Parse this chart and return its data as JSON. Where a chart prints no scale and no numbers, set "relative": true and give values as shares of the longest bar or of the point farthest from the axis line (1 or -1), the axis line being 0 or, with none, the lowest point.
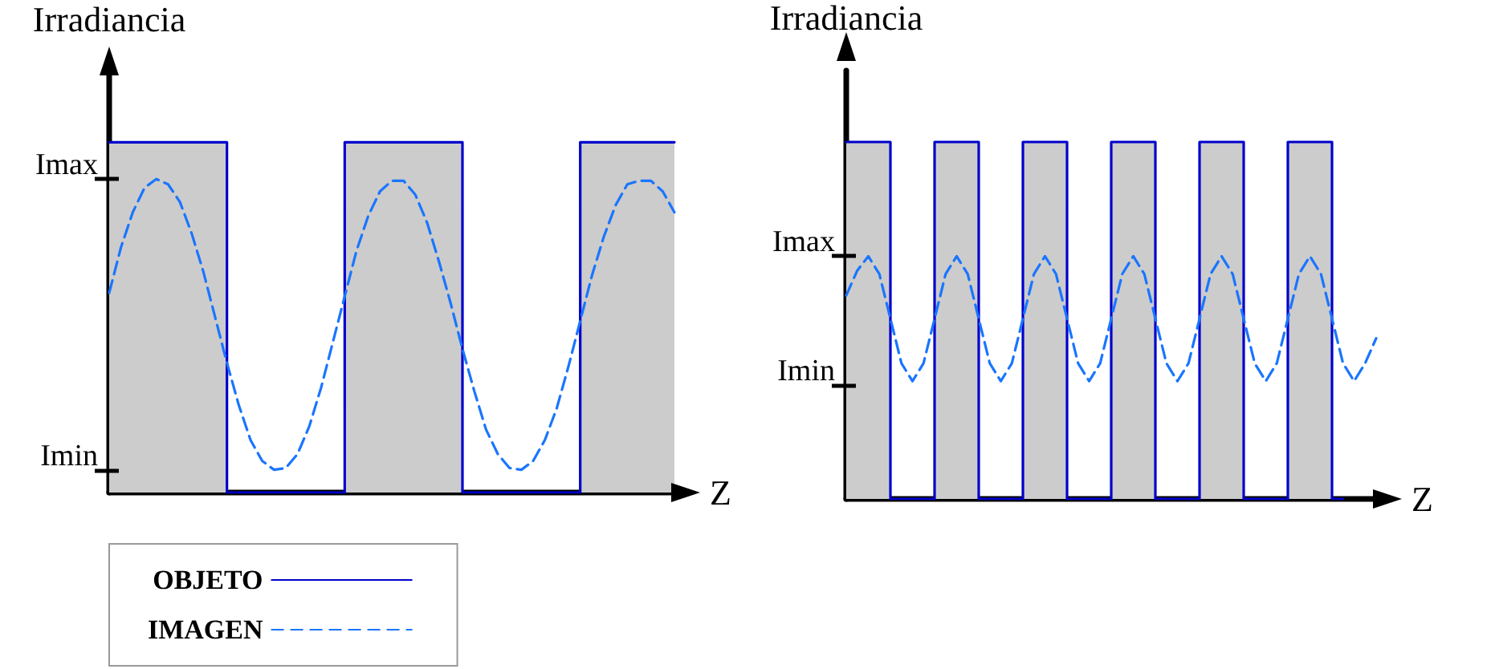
{
  "chart_data": [
    {
      "type": "line",
      "relative": true,
      "ylabel": "Irradiancia",
      "xlabel": "Z",
      "legend": "bottom left",
      "grid": false,
      "ref_lines": [
        {
          "axis": "y",
          "value": 0.895,
          "label": "Imax"
        },
        {
          "axis": "y",
          "value": 0.065,
          "label": "Imin"
        }
      ],
      "categories": [
        null,
        null,
        null,
        null,
        null,
        null,
        null,
        null,
        null,
        null,
        null,
        null,
        null,
        null,
        null,
        null,
        null,
        null,
        null,
        null,
        null,
        null,
        null,
        null,
        null,
        null,
        null,
        null,
        null,
        null,
        null,
        null,
        null,
        null,
        null,
        null,
        null,
        null,
        null,
        null,
        null,
        null,
        null,
        null,
        null,
        null,
        null,
        null,
        null
      ],
      "series": [
        {
          "name": "OBJETO",
          "type": "step",
          "color": "#0000cc",
          "line_style": "solid",
          "values": [
            1,
            1,
            1,
            1,
            1,
            1,
            1,
            1,
            1,
            1,
            0,
            0,
            0,
            0,
            0,
            0,
            0,
            0,
            0,
            0,
            1,
            1,
            1,
            1,
            1,
            1,
            1,
            1,
            1,
            1,
            0,
            0,
            0,
            0,
            0,
            0,
            0,
            0,
            0,
            0,
            1,
            1,
            1,
            1,
            1,
            1,
            1,
            1,
            1
          ]
        },
        {
          "name": "IMAGEN",
          "type": "line",
          "color": "#1a75ff",
          "line_style": "dashed",
          "values": [
            0.57,
            0.7,
            0.8,
            0.87,
            0.895,
            0.88,
            0.83,
            0.74,
            0.63,
            0.5,
            0.37,
            0.25,
            0.15,
            0.09,
            0.065,
            0.07,
            0.11,
            0.19,
            0.3,
            0.43,
            0.56,
            0.69,
            0.79,
            0.86,
            0.89,
            0.89,
            0.85,
            0.77,
            0.66,
            0.54,
            0.41,
            0.29,
            0.18,
            0.11,
            0.07,
            0.065,
            0.09,
            0.15,
            0.24,
            0.36,
            0.49,
            0.62,
            0.73,
            0.82,
            0.88,
            0.89,
            0.89,
            0.86,
            0.8
          ]
        }
      ]
    },
    {
      "type": "line",
      "relative": true,
      "ylabel": "Irradiancia",
      "xlabel": "Z",
      "grid": false,
      "ref_lines": [
        {
          "axis": "y",
          "value": 0.68,
          "label": "Imax"
        },
        {
          "axis": "y",
          "value": 0.32,
          "label": "Imin"
        }
      ],
      "categories": [
        null,
        null,
        null,
        null,
        null,
        null,
        null,
        null,
        null,
        null,
        null,
        null,
        null,
        null,
        null,
        null,
        null,
        null,
        null,
        null,
        null,
        null,
        null,
        null,
        null,
        null,
        null,
        null,
        null,
        null,
        null,
        null,
        null,
        null,
        null,
        null,
        null,
        null,
        null,
        null,
        null,
        null,
        null,
        null,
        null,
        null,
        null,
        null,
        null
      ],
      "series": [
        {
          "type": "step",
          "color": "#0000cc",
          "line_style": "solid",
          "values": [
            1,
            1,
            1,
            1,
            0,
            0,
            0,
            0,
            1,
            1,
            1,
            1,
            0,
            0,
            0,
            0,
            1,
            1,
            1,
            1,
            0,
            0,
            0,
            0,
            1,
            1,
            1,
            1,
            0,
            0,
            0,
            0,
            1,
            1,
            1,
            1,
            0,
            0,
            0,
            0,
            1,
            1,
            1,
            1,
            0,
            0,
            null,
            null,
            null
          ]
        },
        {
          "type": "line",
          "color": "#1a75ff",
          "line_style": "dashed",
          "values": [
            0.57,
            0.64,
            0.68,
            0.63,
            0.505,
            0.38,
            0.33,
            0.38,
            0.505,
            0.63,
            0.68,
            0.63,
            0.505,
            0.38,
            0.33,
            0.38,
            0.505,
            0.63,
            0.68,
            0.63,
            0.505,
            0.38,
            0.33,
            0.38,
            0.505,
            0.63,
            0.68,
            0.63,
            0.505,
            0.38,
            0.33,
            0.38,
            0.505,
            0.63,
            0.68,
            0.63,
            0.505,
            0.38,
            0.33,
            0.38,
            0.505,
            0.63,
            0.68,
            0.63,
            0.505,
            0.38,
            0.33,
            0.38,
            0.45
          ]
        }
      ]
    }
  ]
}
